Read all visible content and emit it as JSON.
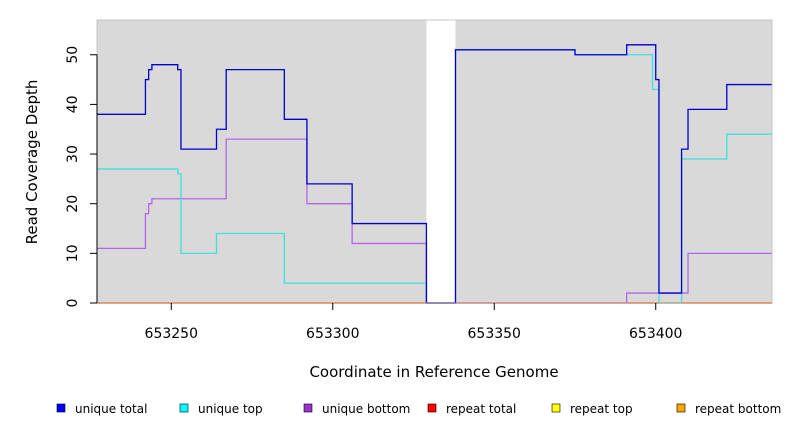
{
  "chart_data": {
    "type": "line",
    "xlabel": "Coordinate in Reference Genome",
    "ylabel": "Read Coverage Depth",
    "xlim": [
      653227,
      653436
    ],
    "ylim": [
      0,
      57
    ],
    "xticks": [
      653250,
      653300,
      653350,
      653400
    ],
    "xtick_labels": [
      "653250",
      "653300",
      "653350",
      "653400"
    ],
    "yticks": [
      0,
      10,
      20,
      30,
      40,
      50
    ],
    "ytick_labels": [
      "0",
      "10",
      "20",
      "30",
      "40",
      "50"
    ],
    "background_color": "#d9d9d9",
    "gap_regions": [
      [
        653329,
        653338
      ]
    ],
    "grid": false,
    "legend_position": "bottom",
    "series": [
      {
        "name": "unique total",
        "color": "#0000cc",
        "legend_color": "#0000ff",
        "steps": [
          [
            653227,
            38
          ],
          [
            653242,
            45
          ],
          [
            653243,
            47
          ],
          [
            653244,
            48
          ],
          [
            653252,
            47
          ],
          [
            653253,
            31
          ],
          [
            653264,
            35
          ],
          [
            653267,
            47
          ],
          [
            653285,
            37
          ],
          [
            653292,
            24
          ],
          [
            653306,
            16
          ],
          [
            653329,
            0
          ],
          [
            653338,
            51
          ],
          [
            653375,
            50
          ],
          [
            653391,
            52
          ],
          [
            653400,
            45
          ],
          [
            653401,
            2
          ],
          [
            653408,
            31
          ],
          [
            653410,
            39
          ],
          [
            653422,
            44
          ],
          [
            653436,
            44
          ]
        ]
      },
      {
        "name": "unique top",
        "color": "#40e0e0",
        "legend_color": "#00ffff",
        "steps": [
          [
            653227,
            27
          ],
          [
            653252,
            26
          ],
          [
            653253,
            10
          ],
          [
            653264,
            14
          ],
          [
            653285,
            4
          ],
          [
            653329,
            0
          ],
          [
            653338,
            51
          ],
          [
            653375,
            50
          ],
          [
            653399,
            43
          ],
          [
            653401,
            0
          ],
          [
            653408,
            29
          ],
          [
            653422,
            34
          ],
          [
            653436,
            34
          ]
        ]
      },
      {
        "name": "unique bottom",
        "color": "#b266e6",
        "legend_color": "#9a32cd",
        "steps": [
          [
            653227,
            11
          ],
          [
            653242,
            18
          ],
          [
            653243,
            20
          ],
          [
            653244,
            21
          ],
          [
            653267,
            33
          ],
          [
            653292,
            20
          ],
          [
            653306,
            12
          ],
          [
            653329,
            0
          ],
          [
            653338,
            0
          ],
          [
            653391,
            2
          ],
          [
            653410,
            10
          ],
          [
            653436,
            10
          ]
        ]
      },
      {
        "name": "repeat total",
        "color": "#ff0000",
        "legend_color": "#ff0000",
        "steps": [
          [
            653227,
            0
          ],
          [
            653436,
            0
          ]
        ]
      },
      {
        "name": "repeat top",
        "color": "#ffff00",
        "legend_color": "#ffff00",
        "steps": [
          [
            653227,
            0
          ],
          [
            653436,
            0
          ]
        ]
      },
      {
        "name": "repeat bottom",
        "color": "#ffa500",
        "legend_color": "#ffa500",
        "steps": [
          [
            653227,
            0
          ],
          [
            653436,
            0
          ]
        ]
      }
    ]
  }
}
